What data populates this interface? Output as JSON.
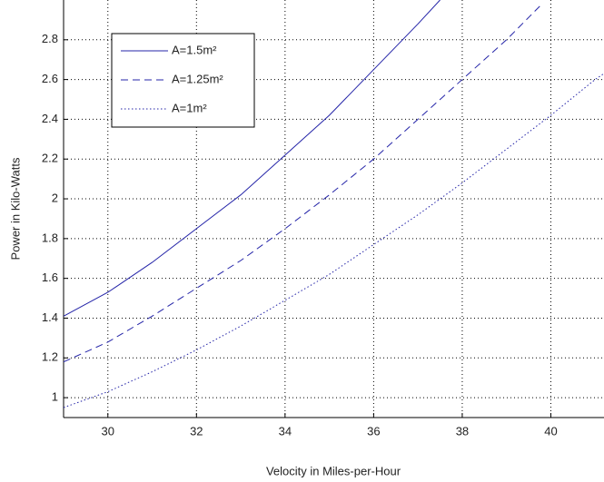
{
  "chart_data": {
    "type": "line",
    "xlabel": "Velocity in Miles-per-Hour",
    "ylabel": "Power in Kilo-Watts",
    "xlim": [
      29,
      41.2
    ],
    "ylim": [
      0.9,
      3
    ],
    "xticks": [
      30,
      32,
      34,
      36,
      38,
      40
    ],
    "yticks": [
      1,
      1.2,
      1.4,
      1.6,
      1.8,
      2,
      2.2,
      2.4,
      2.6,
      2.8
    ],
    "grid": true,
    "legend": "upper left",
    "series": [
      {
        "name": "A=1.5m²",
        "color": "#2424a8",
        "linestyle": "solid",
        "x": [
          29,
          30,
          31,
          32,
          33,
          34,
          35,
          36,
          37,
          37.5
        ],
        "values": [
          1.41,
          1.53,
          1.68,
          1.85,
          2.02,
          2.22,
          2.42,
          2.65,
          2.88,
          3.0
        ]
      },
      {
        "name": "A=1.25m²",
        "color": "#2424a8",
        "linestyle": "dashed",
        "x": [
          29,
          30,
          31,
          32,
          33,
          34,
          35,
          36,
          37,
          38,
          39,
          39.8
        ],
        "values": [
          1.18,
          1.28,
          1.41,
          1.55,
          1.69,
          1.85,
          2.02,
          2.2,
          2.4,
          2.6,
          2.8,
          2.98
        ]
      },
      {
        "name": "A=1m²",
        "color": "#2424a8",
        "linestyle": "dotted",
        "x": [
          29,
          30,
          31,
          32,
          33,
          34,
          35,
          36,
          37,
          38,
          39,
          40,
          41,
          41.2
        ],
        "values": [
          0.95,
          1.03,
          1.13,
          1.24,
          1.36,
          1.49,
          1.62,
          1.77,
          1.92,
          2.08,
          2.25,
          2.42,
          2.6,
          2.63
        ]
      }
    ]
  }
}
